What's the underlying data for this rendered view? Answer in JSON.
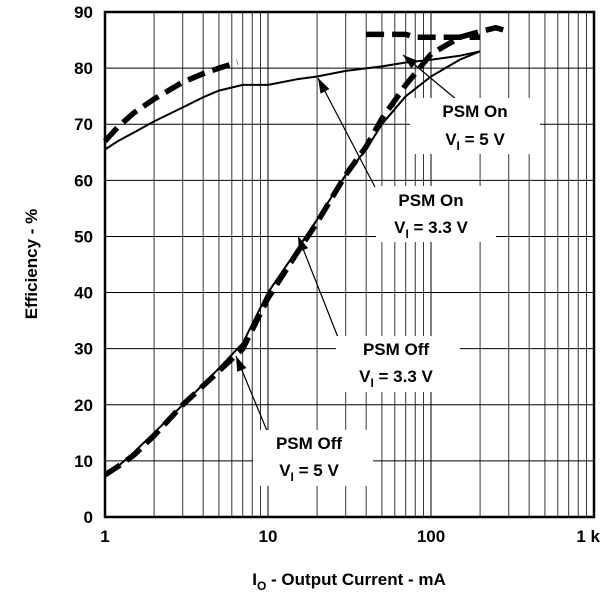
{
  "chart_data": {
    "type": "line",
    "x_scale": "log",
    "xlim": [
      1,
      1000
    ],
    "ylim": [
      0,
      90
    ],
    "grid": true,
    "x_tick_labels": [
      "1",
      "10",
      "100",
      "1 k"
    ],
    "x_tick_values": [
      1,
      10,
      100,
      1000
    ],
    "y_tick_values": [
      0,
      10,
      20,
      30,
      40,
      50,
      60,
      70,
      80,
      90
    ],
    "y_tick_labels": [
      "0",
      "10",
      "20",
      "30",
      "40",
      "50",
      "60",
      "70",
      "80",
      "90"
    ],
    "xlabel_main": "I",
    "xlabel_sub": "O",
    "xlabel_rest": " - Output Current - mA",
    "ylabel": "Efficiency - %",
    "series": [
      {
        "style": "solid-thin",
        "x": [
          1,
          1.2,
          1.5,
          2,
          3,
          4,
          5,
          7,
          10,
          15,
          20,
          30,
          50,
          70,
          100,
          150,
          200
        ],
        "y": [
          65.5,
          67,
          68.5,
          70.5,
          73,
          74.8,
          76,
          77,
          77,
          78,
          78.5,
          79.5,
          80.3,
          81,
          81.5,
          82.2,
          83
        ]
      },
      {
        "style": "dashed-bold",
        "x": [
          1,
          1.2,
          1.5,
          2,
          3,
          4,
          5,
          6.5
        ],
        "y": [
          67,
          69.5,
          72,
          74.5,
          77.5,
          79,
          80,
          81
        ]
      },
      {
        "style": "dashed-bold",
        "x": [
          40,
          50,
          60,
          70,
          80,
          100,
          150,
          200
        ],
        "y": [
          86,
          86,
          86,
          86,
          85.5,
          85.5,
          85.5,
          85.5
        ]
      },
      {
        "style": "solid-thin",
        "x": [
          1,
          1.2,
          1.5,
          2,
          3,
          5,
          7,
          10,
          15,
          20,
          30,
          40,
          50,
          70,
          100,
          150,
          200
        ],
        "y": [
          7.5,
          9,
          11.5,
          15,
          20,
          26.5,
          31,
          40,
          47.5,
          53,
          61,
          65.5,
          70,
          75,
          78.5,
          81.5,
          83
        ]
      },
      {
        "style": "dashed-bold",
        "x": [
          1,
          1.2,
          1.5,
          2,
          3,
          5,
          7,
          10,
          15,
          20,
          30,
          40,
          50,
          70,
          100,
          150,
          200,
          250,
          300
        ],
        "y": [
          7.5,
          9,
          11,
          14.5,
          20,
          26,
          30,
          39,
          47,
          52.5,
          61,
          66,
          71,
          77,
          82.5,
          85.5,
          86.5,
          87.2,
          86.5
        ]
      }
    ],
    "annotations": [
      {
        "line1": "PSM On",
        "line2_main": "V",
        "line2_sub": "I",
        "line2_rest": " = 5 V"
      },
      {
        "line1": "PSM On",
        "line2_main": "V",
        "line2_sub": "I",
        "line2_rest": " = 3.3 V"
      },
      {
        "line1": "PSM Off",
        "line2_main": "V",
        "line2_sub": "I",
        "line2_rest": " = 3.3 V"
      },
      {
        "line1": "PSM Off",
        "line2_main": "V",
        "line2_sub": "I",
        "line2_rest": " = 5 V"
      }
    ]
  }
}
